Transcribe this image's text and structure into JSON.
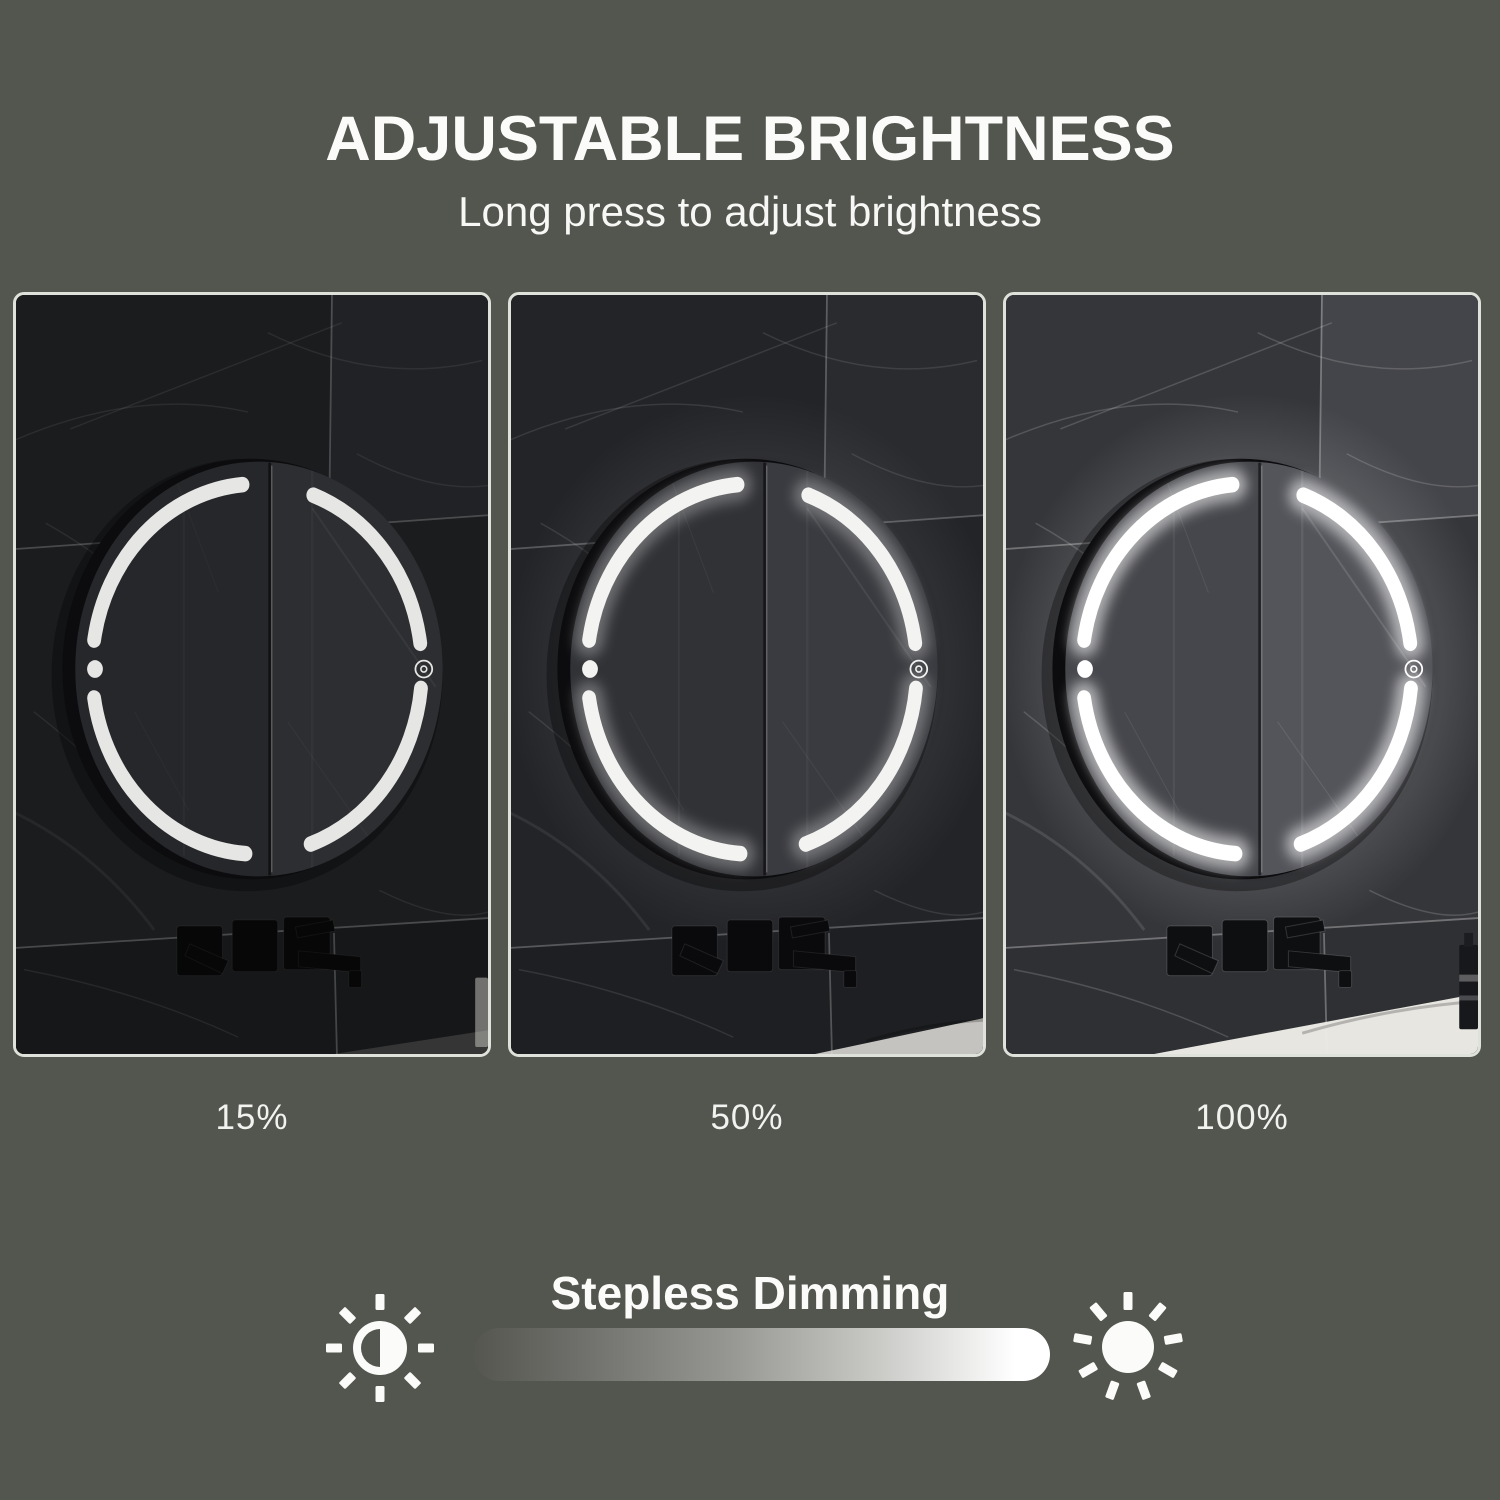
{
  "header": {
    "title": "ADJUSTABLE BRIGHTNESS",
    "subtitle": "Long press to adjust brightness"
  },
  "panels": [
    {
      "label": "15%",
      "brightness_percent": 15,
      "alt": "Round LED mirror cabinet at 15% brightness on dark marble wall"
    },
    {
      "label": "50%",
      "brightness_percent": 50,
      "alt": "Round LED mirror cabinet at 50% brightness on dark marble wall"
    },
    {
      "label": "100%",
      "brightness_percent": 100,
      "alt": "Round LED mirror cabinet at 100% brightness on dark marble wall"
    }
  ],
  "dimming": {
    "title": "Stepless Dimming",
    "low_icon": "dim-sun-icon",
    "high_icon": "bright-sun-icon"
  },
  "colors": {
    "background": "#52564e",
    "panel_border": "#dfe2da",
    "text": "#ffffff",
    "led_light": "#ffffff",
    "bar_gradient_start": "#54564f",
    "bar_gradient_end": "#ffffff"
  }
}
